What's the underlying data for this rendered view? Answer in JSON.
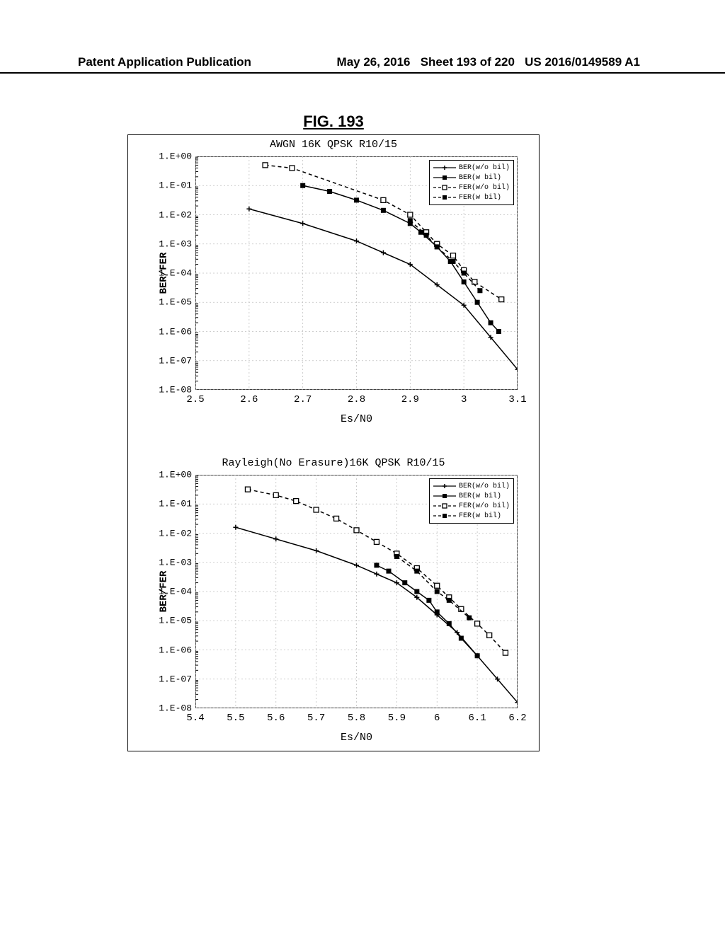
{
  "header": {
    "left": "Patent Application Publication",
    "center": "May 26, 2016",
    "sheet": "Sheet 193 of 220",
    "pubnum": "US 2016/0149589 A1"
  },
  "figure_label": "FIG. 193",
  "chart1": {
    "title": "AWGN 16K QPSK R10/15",
    "ylabel": "BER/FER",
    "xlabel": "Es/N0",
    "xlim": [
      2.5,
      3.1
    ],
    "ylim_exp": [
      -8,
      0
    ],
    "xticks": [
      2.5,
      2.6,
      2.7,
      2.8,
      2.9,
      3,
      3.1
    ],
    "xtick_labels": [
      "2.5",
      "2.6",
      "2.7",
      "2.8",
      "2.9",
      "3",
      "3.1"
    ],
    "ytick_labels": [
      "1.E+00",
      "1.E-01",
      "1.E-02",
      "1.E-03",
      "1.E-04",
      "1.E-05",
      "1.E-06",
      "1.E-07",
      "1.E-08"
    ],
    "grid_color": "#c0c0c0",
    "axis_color": "#000000",
    "series": [
      {
        "name": "BER(w/o bil)",
        "marker": "plus",
        "dash": "solid",
        "color": "#000000",
        "points": [
          [
            2.6,
            -1.8
          ],
          [
            2.7,
            -2.3
          ],
          [
            2.8,
            -2.9
          ],
          [
            2.85,
            -3.3
          ],
          [
            2.9,
            -3.7
          ],
          [
            2.95,
            -4.4
          ],
          [
            3.0,
            -5.1
          ],
          [
            3.05,
            -6.2
          ],
          [
            3.1,
            -7.3
          ]
        ]
      },
      {
        "name": "BER(w bil)",
        "marker": "square-filled",
        "dash": "solid",
        "color": "#000000",
        "points": [
          [
            2.7,
            -1.0
          ],
          [
            2.75,
            -1.2
          ],
          [
            2.8,
            -1.5
          ],
          [
            2.85,
            -1.85
          ],
          [
            2.9,
            -2.3
          ],
          [
            2.92,
            -2.6
          ],
          [
            2.95,
            -3.1
          ],
          [
            2.975,
            -3.6
          ],
          [
            3.0,
            -4.3
          ],
          [
            3.025,
            -5.0
          ],
          [
            3.05,
            -5.7
          ],
          [
            3.065,
            -6.0
          ]
        ]
      },
      {
        "name": "FER(w/o bil)",
        "marker": "square-open",
        "dash": "dashed",
        "color": "#000000",
        "points": [
          [
            2.63,
            -0.3
          ],
          [
            2.68,
            -0.4
          ],
          [
            2.85,
            -1.5
          ],
          [
            2.9,
            -2.0
          ],
          [
            2.93,
            -2.6
          ],
          [
            2.95,
            -3.0
          ],
          [
            2.98,
            -3.4
          ],
          [
            3.0,
            -3.9
          ],
          [
            3.02,
            -4.3
          ],
          [
            3.07,
            -4.9
          ]
        ]
      },
      {
        "name": "FER(w bil)",
        "marker": "square-filled",
        "dash": "dashed",
        "color": "#000000",
        "points": [
          [
            2.9,
            -2.2
          ],
          [
            2.93,
            -2.7
          ],
          [
            2.95,
            -3.1
          ],
          [
            2.98,
            -3.6
          ],
          [
            3.0,
            -4.0
          ],
          [
            3.03,
            -4.6
          ]
        ]
      }
    ],
    "legend_labels": [
      "BER(w/o bil)",
      "BER(w bil)",
      "FER(w/o bil)",
      "FER(w bil)"
    ]
  },
  "chart2": {
    "title": "Rayleigh(No Erasure)16K QPSK R10/15",
    "ylabel": "BER/FER",
    "xlabel": "Es/N0",
    "xlim": [
      5.4,
      6.2
    ],
    "ylim_exp": [
      -8,
      0
    ],
    "xticks": [
      5.4,
      5.5,
      5.6,
      5.7,
      5.8,
      5.9,
      6,
      6.1,
      6.2
    ],
    "xtick_labels": [
      "5.4",
      "5.5",
      "5.6",
      "5.7",
      "5.8",
      "5.9",
      "6",
      "6.1",
      "6.2"
    ],
    "ytick_labels": [
      "1.E+00",
      "1.E-01",
      "1.E-02",
      "1.E-03",
      "1.E-04",
      "1.E-05",
      "1.E-06",
      "1.E-07",
      "1.E-08"
    ],
    "grid_color": "#c0c0c0",
    "axis_color": "#000000",
    "series": [
      {
        "name": "BER(w/o bil)",
        "marker": "plus",
        "dash": "solid",
        "color": "#000000",
        "points": [
          [
            5.5,
            -1.8
          ],
          [
            5.6,
            -2.2
          ],
          [
            5.7,
            -2.6
          ],
          [
            5.8,
            -3.1
          ],
          [
            5.85,
            -3.4
          ],
          [
            5.9,
            -3.7
          ],
          [
            5.95,
            -4.2
          ],
          [
            6.0,
            -4.8
          ],
          [
            6.05,
            -5.4
          ],
          [
            6.1,
            -6.2
          ],
          [
            6.15,
            -7.0
          ],
          [
            6.2,
            -7.8
          ]
        ]
      },
      {
        "name": "BER(w bil)",
        "marker": "square-filled",
        "dash": "solid",
        "color": "#000000",
        "points": [
          [
            5.85,
            -3.1
          ],
          [
            5.88,
            -3.3
          ],
          [
            5.92,
            -3.7
          ],
          [
            5.95,
            -4.0
          ],
          [
            5.98,
            -4.3
          ],
          [
            6.0,
            -4.7
          ],
          [
            6.03,
            -5.1
          ],
          [
            6.06,
            -5.6
          ],
          [
            6.1,
            -6.2
          ]
        ]
      },
      {
        "name": "FER(w/o bil)",
        "marker": "square-open",
        "dash": "dashed",
        "color": "#000000",
        "points": [
          [
            5.53,
            -0.5
          ],
          [
            5.6,
            -0.7
          ],
          [
            5.65,
            -0.9
          ],
          [
            5.7,
            -1.2
          ],
          [
            5.75,
            -1.5
          ],
          [
            5.8,
            -1.9
          ],
          [
            5.85,
            -2.3
          ],
          [
            5.9,
            -2.7
          ],
          [
            5.95,
            -3.2
          ],
          [
            6.0,
            -3.8
          ],
          [
            6.03,
            -4.2
          ],
          [
            6.06,
            -4.6
          ],
          [
            6.1,
            -5.1
          ],
          [
            6.13,
            -5.5
          ],
          [
            6.17,
            -6.1
          ]
        ]
      },
      {
        "name": "FER(w bil)",
        "marker": "square-filled",
        "dash": "dashed",
        "color": "#000000",
        "points": [
          [
            5.9,
            -2.8
          ],
          [
            5.95,
            -3.3
          ],
          [
            6.0,
            -4.0
          ],
          [
            6.03,
            -4.3
          ],
          [
            6.08,
            -4.9
          ]
        ]
      }
    ],
    "legend_labels": [
      "BER(w/o bil)",
      "BER(w bil)",
      "FER(w/o bil)",
      "FER(w bil)"
    ]
  }
}
